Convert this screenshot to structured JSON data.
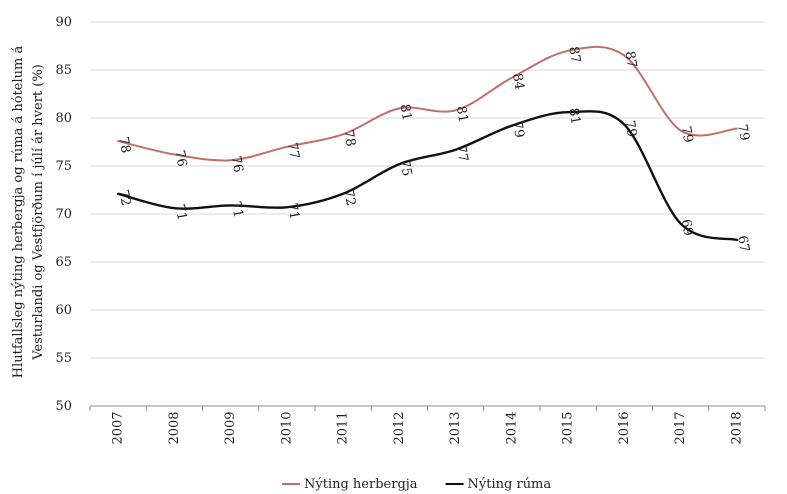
{
  "chart_data": {
    "type": "line",
    "ylabel_line1": "Hlutfallsleg nýting herbergja og rúma á hótelum á",
    "ylabel_line2": "Vesturlandi og Vestfjörðum í júlí ár hvert (%)",
    "ylim": [
      50,
      90
    ],
    "yticks": [
      50,
      55,
      60,
      65,
      70,
      75,
      80,
      85,
      90
    ],
    "grid": true,
    "legend_position": "bottom",
    "x": [
      "2007",
      "2008",
      "2009",
      "2010",
      "2011",
      "2012",
      "2013",
      "2014",
      "2015",
      "2016",
      "2017",
      "2018"
    ],
    "series": [
      {
        "name": "Nýting herbergja",
        "color": "#c0706a",
        "values": [
          77.6,
          76.2,
          75.6,
          77.0,
          78.3,
          81.0,
          80.8,
          84.2,
          87.0,
          86.5,
          78.7,
          78.9
        ],
        "labels": [
          "78",
          "76",
          "76",
          "77",
          "78",
          "81",
          "81",
          "84",
          "87",
          "87",
          "79",
          "79"
        ]
      },
      {
        "name": "Nýting rúma",
        "color": "#111111",
        "values": [
          72.1,
          70.6,
          70.9,
          70.7,
          72.1,
          75.2,
          76.7,
          79.2,
          80.6,
          79.3,
          69.0,
          67.3
        ],
        "labels": [
          "72",
          "71",
          "71",
          "71",
          "72",
          "75",
          "77",
          "79",
          "81",
          "79",
          "69",
          "67"
        ]
      }
    ]
  }
}
